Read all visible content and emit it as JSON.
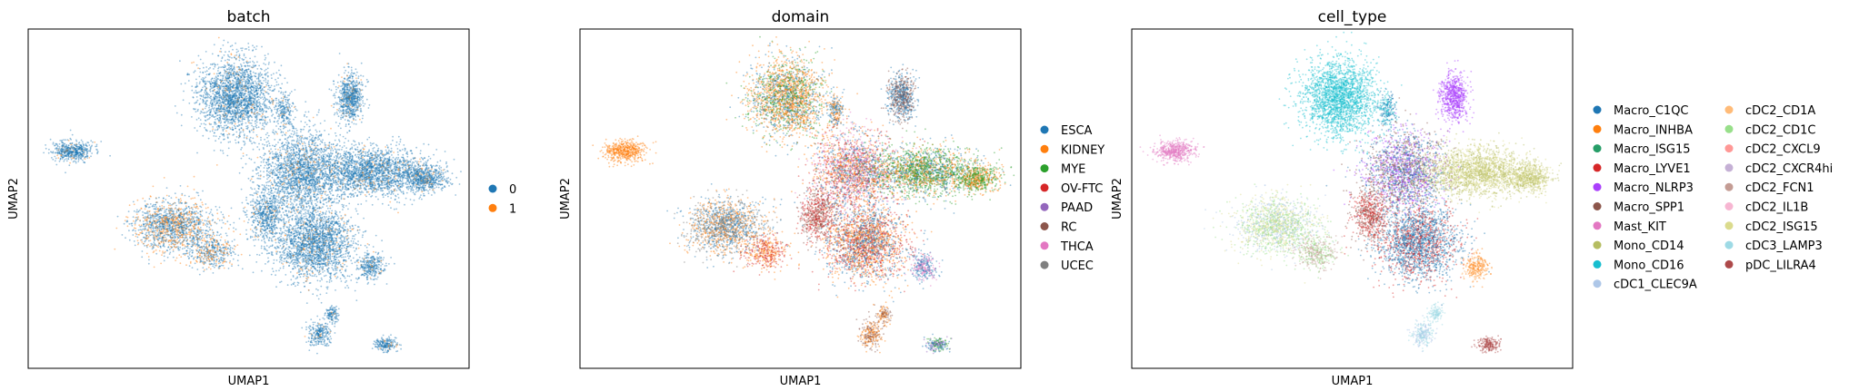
{
  "chart_data": [
    {
      "type": "scatter",
      "title": "batch",
      "xlabel": "UMAP1",
      "ylabel": "UMAP2",
      "grid": false,
      "legend_placement": "right",
      "series": [
        {
          "name": "0",
          "color": "#1f77b4"
        },
        {
          "name": "1",
          "color": "#ff7f0e"
        }
      ]
    },
    {
      "type": "scatter",
      "title": "domain",
      "xlabel": "UMAP1",
      "ylabel": "UMAP2",
      "grid": false,
      "legend_placement": "right",
      "series": [
        {
          "name": "ESCA",
          "color": "#1f77b4"
        },
        {
          "name": "KIDNEY",
          "color": "#ff7f0e"
        },
        {
          "name": "MYE",
          "color": "#2ca02c"
        },
        {
          "name": "OV-FTC",
          "color": "#d62728"
        },
        {
          "name": "PAAD",
          "color": "#9467bd"
        },
        {
          "name": "RC",
          "color": "#8c564b"
        },
        {
          "name": "THCA",
          "color": "#e377c2"
        },
        {
          "name": "UCEC",
          "color": "#7f7f7f"
        }
      ]
    },
    {
      "type": "scatter",
      "title": "cell_type",
      "xlabel": "UMAP1",
      "ylabel": "UMAP2",
      "grid": false,
      "legend_placement": "right",
      "series": [
        {
          "name": "Macro_C1QC",
          "color": "#1f77b4"
        },
        {
          "name": "Macro_INHBA",
          "color": "#ff7f0e"
        },
        {
          "name": "Macro_ISG15",
          "color": "#279e68"
        },
        {
          "name": "Macro_LYVE1",
          "color": "#d62728"
        },
        {
          "name": "Macro_NLRP3",
          "color": "#aa40fc"
        },
        {
          "name": "Macro_SPP1",
          "color": "#8c564b"
        },
        {
          "name": "Mast_KIT",
          "color": "#e377c2"
        },
        {
          "name": "Mono_CD14",
          "color": "#b5bd61"
        },
        {
          "name": "Mono_CD16",
          "color": "#17becf"
        },
        {
          "name": "cDC1_CLEC9A",
          "color": "#aec7e8"
        },
        {
          "name": "cDC2_CD1A",
          "color": "#ffbb78"
        },
        {
          "name": "cDC2_CD1C",
          "color": "#98df8a"
        },
        {
          "name": "cDC2_CXCL9",
          "color": "#ff9896"
        },
        {
          "name": "cDC2_CXCR4hi",
          "color": "#c5b0d5"
        },
        {
          "name": "cDC2_FCN1",
          "color": "#c49c94"
        },
        {
          "name": "cDC2_IL1B",
          "color": "#f7b6d2"
        },
        {
          "name": "cDC2_ISG15",
          "color": "#dbdb8d"
        },
        {
          "name": "cDC3_LAMP3",
          "color": "#9edae5"
        },
        {
          "name": "pDC_LILRA4",
          "color": "#ad494a"
        }
      ]
    }
  ]
}
